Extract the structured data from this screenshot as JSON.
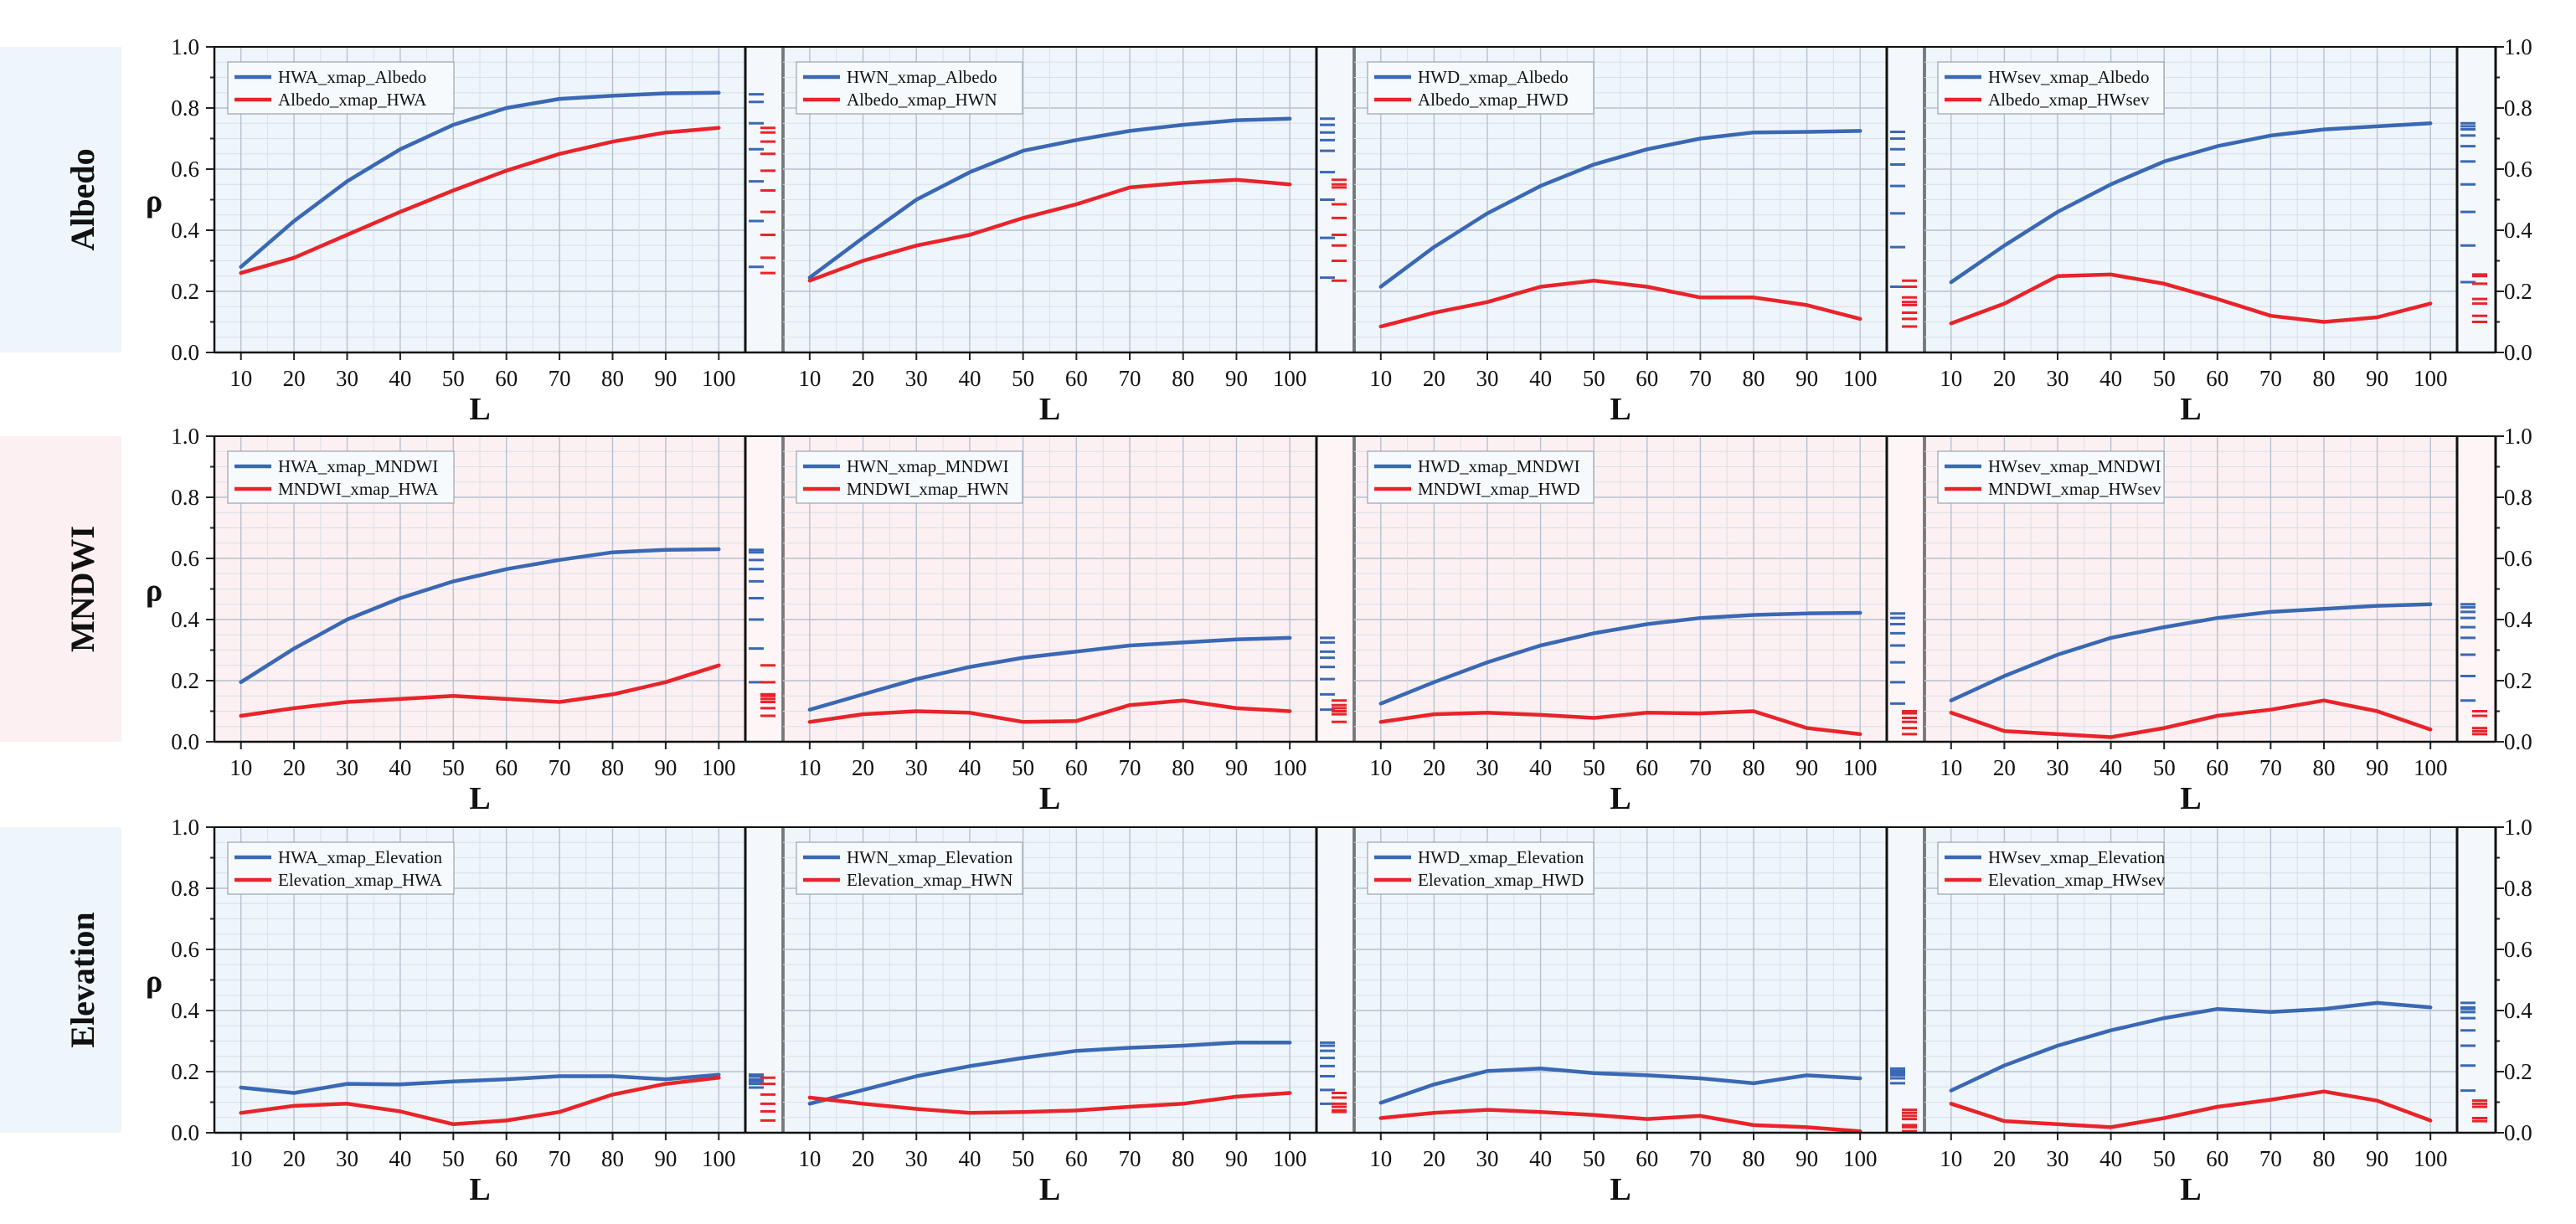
{
  "chart_data": {
    "type": "line",
    "title": "",
    "xlabel": "L",
    "ylabel": "ρ",
    "x": [
      10,
      20,
      30,
      40,
      50,
      60,
      70,
      80,
      90,
      100
    ],
    "xlim": [
      5,
      105
    ],
    "ylim": [
      0,
      1.0
    ],
    "yticks": [
      "0.0",
      "0.2",
      "0.4",
      "0.6",
      "0.8",
      "1.0"
    ],
    "series_colors": {
      "blue": "#3a68b4",
      "red": "#e8242a"
    },
    "rows": [
      {
        "name": "Albedo",
        "background": "#eef5fb",
        "panels": [
          {
            "series": [
              {
                "name": "HWA_xmap_Albedo",
                "color": "#3a68b4",
                "values": [
                  0.28,
                  0.43,
                  0.56,
                  0.665,
                  0.745,
                  0.8,
                  0.83,
                  0.84,
                  0.848,
                  0.85
                ]
              },
              {
                "name": "Albedo_xmap_HWA",
                "color": "#e8242a",
                "values": [
                  0.26,
                  0.31,
                  0.385,
                  0.46,
                  0.53,
                  0.595,
                  0.65,
                  0.69,
                  0.72,
                  0.735
                ]
              }
            ],
            "side_ticks": {
              "blue": [
                0.845,
                0.82,
                0.75,
                0.665,
                0.56,
                0.43,
                0.28
              ],
              "red": [
                0.735,
                0.72,
                0.69,
                0.65,
                0.595,
                0.53,
                0.46,
                0.385,
                0.31,
                0.26
              ]
            }
          },
          {
            "series": [
              {
                "name": "HWN_xmap_Albedo",
                "color": "#3a68b4",
                "values": [
                  0.245,
                  0.375,
                  0.5,
                  0.59,
                  0.66,
                  0.695,
                  0.725,
                  0.745,
                  0.76,
                  0.765
                ]
              },
              {
                "name": "Albedo_xmap_HWN",
                "color": "#e8242a",
                "values": [
                  0.235,
                  0.3,
                  0.35,
                  0.385,
                  0.44,
                  0.485,
                  0.54,
                  0.555,
                  0.565,
                  0.55
                ]
              }
            ],
            "side_ticks": {
              "blue": [
                0.765,
                0.745,
                0.72,
                0.695,
                0.66,
                0.59,
                0.5,
                0.375,
                0.245
              ],
              "red": [
                0.565,
                0.55,
                0.54,
                0.485,
                0.44,
                0.385,
                0.35,
                0.3,
                0.235
              ]
            }
          },
          {
            "series": [
              {
                "name": "HWD_xmap_Albedo",
                "color": "#3a68b4",
                "values": [
                  0.215,
                  0.345,
                  0.455,
                  0.545,
                  0.615,
                  0.665,
                  0.7,
                  0.72,
                  0.722,
                  0.725
                ]
              },
              {
                "name": "Albedo_xmap_HWD",
                "color": "#e8242a",
                "values": [
                  0.085,
                  0.13,
                  0.165,
                  0.215,
                  0.235,
                  0.215,
                  0.18,
                  0.18,
                  0.155,
                  0.11
                ]
              }
            ],
            "side_ticks": {
              "blue": [
                0.722,
                0.7,
                0.665,
                0.615,
                0.545,
                0.455,
                0.345,
                0.215
              ],
              "red": [
                0.235,
                0.215,
                0.18,
                0.165,
                0.155,
                0.13,
                0.11,
                0.085
              ]
            }
          },
          {
            "series": [
              {
                "name": "HWsev_xmap_Albedo",
                "color": "#3a68b4",
                "values": [
                  0.23,
                  0.35,
                  0.46,
                  0.55,
                  0.625,
                  0.675,
                  0.71,
                  0.73,
                  0.74,
                  0.75
                ]
              },
              {
                "name": "Albedo_xmap_HWsev",
                "color": "#e8242a",
                "values": [
                  0.095,
                  0.16,
                  0.25,
                  0.255,
                  0.225,
                  0.175,
                  0.12,
                  0.1,
                  0.115,
                  0.16
                ]
              }
            ],
            "side_ticks": {
              "blue": [
                0.75,
                0.74,
                0.73,
                0.71,
                0.675,
                0.625,
                0.55,
                0.46,
                0.35,
                0.23
              ],
              "red": [
                0.255,
                0.25,
                0.225,
                0.175,
                0.16,
                0.12,
                0.1
              ]
            }
          }
        ]
      },
      {
        "name": "MNDWI",
        "background": "#fcf0f2",
        "panels": [
          {
            "series": [
              {
                "name": "HWA_xmap_MNDWI",
                "color": "#3a68b4",
                "values": [
                  0.195,
                  0.305,
                  0.4,
                  0.47,
                  0.525,
                  0.565,
                  0.595,
                  0.62,
                  0.628,
                  0.63
                ]
              },
              {
                "name": "MNDWI_xmap_HWA",
                "color": "#e8242a",
                "values": [
                  0.085,
                  0.11,
                  0.13,
                  0.14,
                  0.15,
                  0.14,
                  0.13,
                  0.155,
                  0.195,
                  0.25
                ]
              }
            ],
            "side_ticks": {
              "blue": [
                0.628,
                0.62,
                0.595,
                0.565,
                0.525,
                0.47,
                0.4,
                0.305,
                0.195
              ],
              "red": [
                0.25,
                0.195,
                0.155,
                0.15,
                0.14,
                0.13,
                0.11,
                0.085
              ]
            }
          },
          {
            "series": [
              {
                "name": "HWN_xmap_MNDWI",
                "color": "#3a68b4",
                "values": [
                  0.105,
                  0.155,
                  0.205,
                  0.245,
                  0.275,
                  0.295,
                  0.315,
                  0.325,
                  0.335,
                  0.34
                ]
              },
              {
                "name": "MNDWI_xmap_HWN",
                "color": "#e8242a",
                "values": [
                  0.065,
                  0.09,
                  0.1,
                  0.095,
                  0.065,
                  0.068,
                  0.12,
                  0.135,
                  0.11,
                  0.1
                ]
              }
            ],
            "side_ticks": {
              "blue": [
                0.34,
                0.325,
                0.295,
                0.275,
                0.245,
                0.205,
                0.155,
                0.105
              ],
              "red": [
                0.135,
                0.12,
                0.11,
                0.1,
                0.09,
                0.065
              ]
            }
          },
          {
            "series": [
              {
                "name": "HWD_xmap_MNDWI",
                "color": "#3a68b4",
                "values": [
                  0.125,
                  0.195,
                  0.26,
                  0.315,
                  0.355,
                  0.385,
                  0.405,
                  0.415,
                  0.42,
                  0.422
                ]
              },
              {
                "name": "MNDWI_xmap_HWD",
                "color": "#e8242a",
                "values": [
                  0.065,
                  0.09,
                  0.095,
                  0.088,
                  0.078,
                  0.095,
                  0.093,
                  0.1,
                  0.045,
                  0.025
                ]
              }
            ],
            "side_ticks": {
              "blue": [
                0.42,
                0.405,
                0.385,
                0.355,
                0.315,
                0.26,
                0.195,
                0.125
              ],
              "red": [
                0.1,
                0.093,
                0.078,
                0.065,
                0.045,
                0.025
              ]
            }
          },
          {
            "series": [
              {
                "name": "HWsev_xmap_MNDWI",
                "color": "#3a68b4",
                "values": [
                  0.135,
                  0.215,
                  0.285,
                  0.34,
                  0.375,
                  0.405,
                  0.425,
                  0.435,
                  0.445,
                  0.45
                ]
              },
              {
                "name": "MNDWI_xmap_HWsev",
                "color": "#e8242a",
                "values": [
                  0.095,
                  0.035,
                  0.025,
                  0.015,
                  0.045,
                  0.085,
                  0.105,
                  0.135,
                  0.1,
                  0.04
                ]
              }
            ],
            "side_ticks": {
              "blue": [
                0.45,
                0.44,
                0.425,
                0.405,
                0.375,
                0.34,
                0.285,
                0.215,
                0.135
              ],
              "red": [
                0.1,
                0.085,
                0.045,
                0.035,
                0.025
              ]
            }
          }
        ]
      },
      {
        "name": "Elevation",
        "background": "#eef5fb",
        "panels": [
          {
            "series": [
              {
                "name": "HWA_xmap_Elevation",
                "color": "#3a68b4",
                "values": [
                  0.148,
                  0.13,
                  0.16,
                  0.158,
                  0.168,
                  0.175,
                  0.185,
                  0.185,
                  0.175,
                  0.19
                ]
              },
              {
                "name": "Elevation_xmap_HWA",
                "color": "#e8242a",
                "values": [
                  0.065,
                  0.088,
                  0.095,
                  0.07,
                  0.028,
                  0.04,
                  0.068,
                  0.125,
                  0.16,
                  0.18
                ]
              }
            ],
            "side_ticks": {
              "blue": [
                0.19,
                0.185,
                0.175,
                0.168,
                0.16,
                0.148
              ],
              "red": [
                0.18,
                0.16,
                0.125,
                0.095,
                0.07,
                0.04
              ]
            }
          },
          {
            "series": [
              {
                "name": "HWN_xmap_Elevation",
                "color": "#3a68b4",
                "values": [
                  0.095,
                  0.14,
                  0.185,
                  0.218,
                  0.245,
                  0.268,
                  0.278,
                  0.285,
                  0.295,
                  0.295
                ]
              },
              {
                "name": "Elevation_xmap_HWN",
                "color": "#e8242a",
                "values": [
                  0.115,
                  0.095,
                  0.078,
                  0.065,
                  0.068,
                  0.073,
                  0.085,
                  0.095,
                  0.118,
                  0.13
                ]
              }
            ],
            "side_ticks": {
              "blue": [
                0.295,
                0.285,
                0.268,
                0.245,
                0.218,
                0.185,
                0.14,
                0.095
              ],
              "red": [
                0.13,
                0.115,
                0.095,
                0.085,
                0.073,
                0.068
              ]
            }
          },
          {
            "series": [
              {
                "name": "HWD_xmap_Elevation",
                "color": "#3a68b4",
                "values": [
                  0.098,
                  0.158,
                  0.202,
                  0.21,
                  0.195,
                  0.188,
                  0.178,
                  0.162,
                  0.188,
                  0.178
                ]
              },
              {
                "name": "Elevation_xmap_HWD",
                "color": "#e8242a",
                "values": [
                  0.048,
                  0.065,
                  0.075,
                  0.068,
                  0.058,
                  0.045,
                  0.055,
                  0.025,
                  0.018,
                  0.005
                ]
              }
            ],
            "side_ticks": {
              "blue": [
                0.21,
                0.202,
                0.195,
                0.188,
                0.178,
                0.162
              ],
              "red": [
                0.075,
                0.065,
                0.055,
                0.045,
                0.025,
                0.018,
                0.005
              ]
            }
          },
          {
            "series": [
              {
                "name": "HWsev_xmap_Elevation",
                "color": "#3a68b4",
                "values": [
                  0.138,
                  0.22,
                  0.285,
                  0.335,
                  0.375,
                  0.405,
                  0.395,
                  0.405,
                  0.425,
                  0.41
                ]
              },
              {
                "name": "Elevation_xmap_HWsev",
                "color": "#e8242a",
                "values": [
                  0.095,
                  0.038,
                  0.028,
                  0.018,
                  0.048,
                  0.085,
                  0.108,
                  0.135,
                  0.105,
                  0.04
                ]
              }
            ],
            "side_ticks": {
              "blue": [
                0.425,
                0.41,
                0.405,
                0.395,
                0.375,
                0.335,
                0.285,
                0.22,
                0.138
              ],
              "red": [
                0.105,
                0.095,
                0.085,
                0.048,
                0.038
              ]
            }
          }
        ]
      }
    ]
  }
}
